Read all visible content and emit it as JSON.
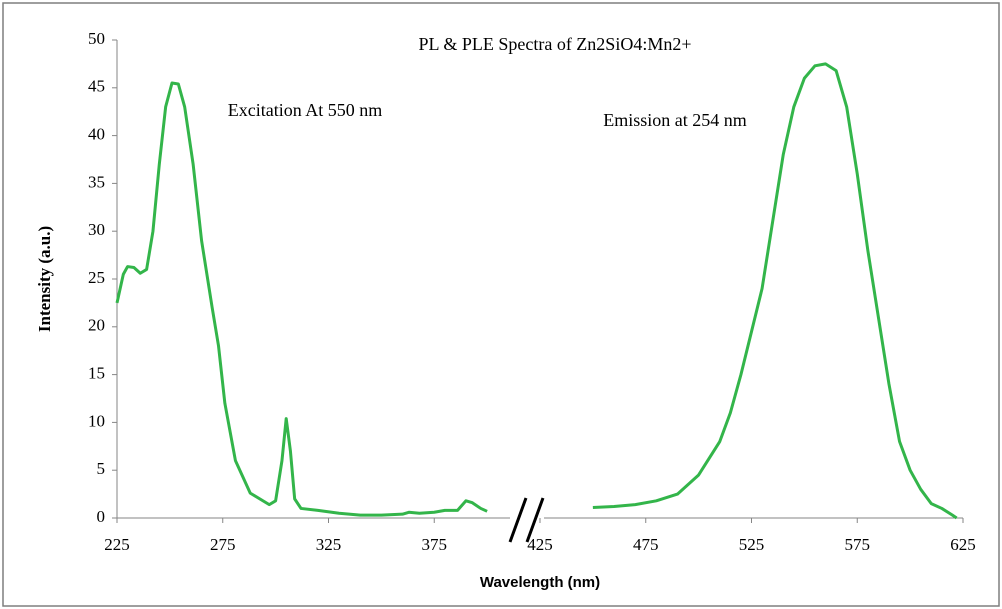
{
  "chart_data": {
    "type": "line",
    "title": "PL & PLE Spectra of Zn2SiO4:Mn2+",
    "x_label": "Wavelength (nm)",
    "y_label": "Intensity (a.u.)",
    "annotations": [
      {
        "text": "Excitation At 550 nm"
      },
      {
        "text": "Emission at 254 nm"
      }
    ],
    "xlim": [
      225,
      625
    ],
    "xticks": [
      225,
      275,
      325,
      375,
      425,
      475,
      525,
      575,
      625
    ],
    "ylim": [
      0,
      50
    ],
    "yticks": [
      0,
      5,
      10,
      15,
      20,
      25,
      30,
      35,
      40,
      45,
      50
    ],
    "series": [
      {
        "color": "#33b54a",
        "x": [
          225,
          228,
          230,
          233,
          236,
          239,
          242,
          245,
          248,
          251,
          254,
          257,
          261,
          265,
          270,
          273,
          276,
          281,
          288,
          297,
          300,
          303,
          305,
          307,
          309,
          312,
          320,
          330,
          340,
          350,
          360,
          363,
          368,
          375,
          380,
          386,
          390,
          393,
          397,
          400
        ],
        "values": [
          22.5,
          25.5,
          26.3,
          26.2,
          25.6,
          26,
          30,
          37,
          43,
          45.5,
          45.4,
          43,
          37,
          29,
          22,
          18,
          12,
          6,
          2.6,
          1.4,
          1.8,
          6,
          10.4,
          7,
          2,
          1,
          0.8,
          0.5,
          0.3,
          0.3,
          0.4,
          0.6,
          0.5,
          0.6,
          0.8,
          0.8,
          1.8,
          1.6,
          1,
          0.7
        ]
      },
      {
        "color": "#33b54a",
        "x": [
          450,
          460,
          470,
          480,
          490,
          500,
          510,
          515,
          520,
          525,
          530,
          535,
          540,
          545,
          550,
          555,
          560,
          565,
          570,
          575,
          580,
          585,
          590,
          595,
          600,
          605,
          610,
          615,
          620,
          622
        ],
        "values": [
          1.1,
          1.2,
          1.4,
          1.8,
          2.5,
          4.5,
          8,
          11,
          15,
          19.5,
          24,
          31,
          38,
          43,
          46,
          47.3,
          47.5,
          46.8,
          43,
          36,
          28,
          21,
          14,
          8,
          5,
          3,
          1.5,
          1,
          0.3,
          0
        ]
      }
    ]
  }
}
